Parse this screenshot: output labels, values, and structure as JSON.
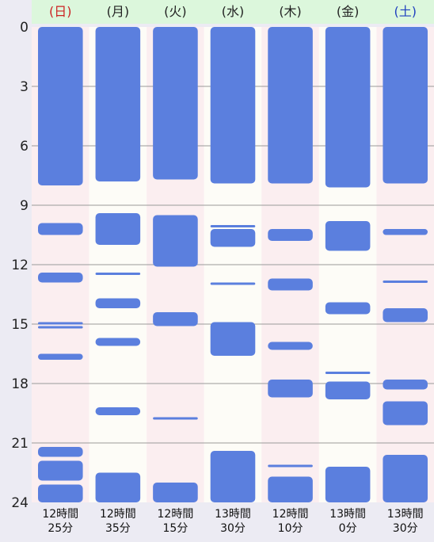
{
  "chart_data": {
    "type": "sleep-timeline",
    "title": "",
    "xlabel": "",
    "ylabel": "",
    "ylim": [
      0,
      24
    ],
    "yticks": [
      "0",
      "3",
      "6",
      "9",
      "12",
      "15",
      "18",
      "21",
      "24"
    ],
    "grid": true,
    "colors": {
      "block": "#5b7fde",
      "band_pink": "#fbeef0",
      "band_white": "#fdfcf7",
      "header_bg": "#dcf7dc",
      "sunday": "#cc2222",
      "saturday": "#1f3fbf",
      "weekday": "#222222",
      "gridline": "#9a9a9a"
    },
    "days": [
      {
        "label": "(日)",
        "total_line1": "12時間",
        "total_line2": "25分",
        "blocks": [
          [
            0,
            8.0
          ],
          [
            9.9,
            10.5
          ],
          [
            12.4,
            12.9
          ],
          [
            14.9,
            15.0
          ],
          [
            15.1,
            15.2
          ],
          [
            16.5,
            16.8
          ],
          [
            21.2,
            21.7
          ],
          [
            21.9,
            22.9
          ],
          [
            23.1,
            24
          ]
        ]
      },
      {
        "label": "(月)",
        "total_line1": "12時間",
        "total_line2": "35分",
        "blocks": [
          [
            0,
            7.8
          ],
          [
            9.4,
            11.0
          ],
          [
            12.4,
            12.5
          ],
          [
            13.7,
            14.2
          ],
          [
            15.7,
            16.1
          ],
          [
            19.2,
            19.6
          ],
          [
            22.5,
            24
          ]
        ]
      },
      {
        "label": "(火)",
        "total_line1": "12時間",
        "total_line2": "15分",
        "blocks": [
          [
            0,
            7.7
          ],
          [
            9.5,
            12.1
          ],
          [
            14.4,
            15.1
          ],
          [
            19.7,
            19.8
          ],
          [
            23.0,
            24
          ]
        ]
      },
      {
        "label": "(水)",
        "total_line1": "13時間",
        "total_line2": "30分",
        "blocks": [
          [
            0,
            7.9
          ],
          [
            10.0,
            10.1
          ],
          [
            10.2,
            11.1
          ],
          [
            12.9,
            13.0
          ],
          [
            14.9,
            16.6
          ],
          [
            21.4,
            24
          ]
        ]
      },
      {
        "label": "(木)",
        "total_line1": "12時間",
        "total_line2": "10分",
        "blocks": [
          [
            0,
            7.9
          ],
          [
            10.2,
            10.8
          ],
          [
            12.7,
            13.3
          ],
          [
            15.9,
            16.3
          ],
          [
            17.8,
            18.7
          ],
          [
            22.1,
            22.2
          ],
          [
            22.7,
            24
          ]
        ]
      },
      {
        "label": "(金)",
        "total_line1": "13時間",
        "total_line2": "0分",
        "blocks": [
          [
            0,
            8.1
          ],
          [
            9.8,
            11.3
          ],
          [
            13.9,
            14.5
          ],
          [
            17.4,
            17.5
          ],
          [
            17.9,
            18.8
          ],
          [
            22.2,
            24
          ]
        ]
      },
      {
        "label": "(土)",
        "total_line1": "13時間",
        "total_line2": "30分",
        "blocks": [
          [
            0,
            7.9
          ],
          [
            10.2,
            10.5
          ],
          [
            12.8,
            12.9
          ],
          [
            14.2,
            14.9
          ],
          [
            17.8,
            18.3
          ],
          [
            18.9,
            20.1
          ],
          [
            21.6,
            24
          ]
        ]
      }
    ]
  }
}
